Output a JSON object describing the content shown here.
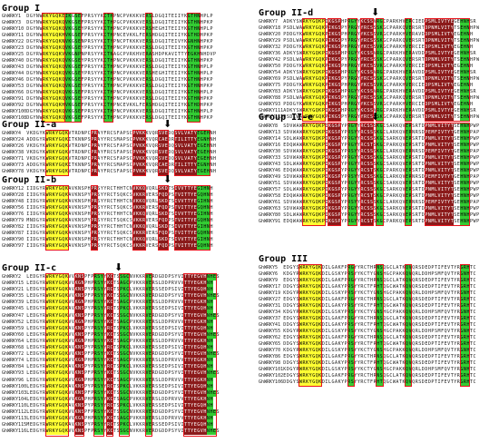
{
  "colors": {
    "yellow": "#ffff33",
    "green": "#33cc33",
    "dark_red": "#8b1a1a",
    "box": "#e8141c"
  },
  "icons": {
    "marker": "down-arrow-icon"
  },
  "groups": [
    {
      "title": "Group I",
      "seqs": [
        {
          "id": "GhWRKY1",
          "seq": "DGYNWRKYGQKEIKGSEFPRSYYKCTHPNCPVKKKVERSLDGQITEIIYKGTHNHPLP"
        },
        {
          "id": "GhWRKY3",
          "seq": "DGYNWRKYGQKQVKGSEFPRSYYKCTHPGCPVKKKVERSLDGQITEIIYKGTHNHPKP"
        },
        {
          "id": "GhWRKY10",
          "seq": "DGYNWRKYGQKQVKGSEYPRSYYKCTHPNCPVKKKVERSHEGHITEIIYKGTHNHPLP"
        },
        {
          "id": "GhWRKY11",
          "seq": "DGYNWRKYGQKHVKGSEFPRSYYKCTHPNCEVKKLFERSHDGQITEIIYKGTHDHPKP"
        },
        {
          "id": "GhWRKY22",
          "seq": "DGYRWRKYGQKNVKGSENPRSYYKCTYPNCPTKKKVERSLDGQITEIVYKGNHNHPKP"
        },
        {
          "id": "GhWRKY23",
          "seq": "DGYNWRKYGQKQVKGSEYPRSYYKCTHPNCPVKKKVERSLDGQITEIIYKGTHNHPKP"
        },
        {
          "id": "GhWRKY25",
          "seq": "DGYRWRKYGQKVVKGNPNPRSYYKCTNAGCPVRKHVERASHDPKAVITTYEGKHNHDVP"
        },
        {
          "id": "GhWRKY40",
          "seq": "DGYNWRKYGQKQVKGSEYPRSYYKCTHPNCPVKKKVERSLDGQITEIIYKGTHNHPKP"
        },
        {
          "id": "GhWRKY43",
          "seq": "DGYNWRKYGQKQVKGSEFPRSYYKCTHPNCPVKKKVERSLDGQITEIIYKGTHNHPLP"
        },
        {
          "id": "GhWRKY44",
          "seq": "DGYNWRKYGQKQVKGSEYPRSYYKCTHPNCPVKKKVERSHEGHITEIIYKGTHNHPLP"
        },
        {
          "id": "GhWRKY46",
          "seq": "DGYNWRKYGQKQVKGSEFPRSYYKCTHPNCPVKKKVERSLDGQITEIIYKGTHNHPKP"
        },
        {
          "id": "GhWRKY53",
          "seq": "DGYNWRKYGQKQVKGSEYPRSYYKCTHPNCPVKKKVERSLDGQITEIIYKGTHNHPKP"
        },
        {
          "id": "GhWRKY66",
          "seq": "DGYNWRKYGQKQVKGSEFPRSYYKCTHPNCPVKKKVERSLDGQITEIIYKGTHNHPLP"
        },
        {
          "id": "GhWRKY91",
          "seq": "DGYNWRKYGQKQVKGSEYPRSYYKCTHPNCPVKKKVERSLDGQITEIIYKGTHNHPKP"
        },
        {
          "id": "GhWRKY92",
          "seq": "DGYNWRKYGQKHVKGSEFPRSYYKCTHPNCEVKKLFERSHDGQITEIIYKGTHDHPKP"
        },
        {
          "id": "GhWRKY100",
          "seq": "DGYNWRKYGQKQVKGSEFPRSYYKCTHPNCPVKKKVERSLDGQITEIIYKGTHNHPLP"
        },
        {
          "id": "GhWRKY108",
          "seq": "DGYNWRKYGQKQVKGSEFPRSYYKCTHPNCPVKKKVERSLDGQITEIIYKGTHNHPKP"
        }
      ]
    },
    {
      "title": "Group II-a",
      "seqs": [
        {
          "id": "GhWRKY4",
          "seq": "VKDGYKWRKYGQKVTRDNPCPRAYFRCSFAPSCPVKKKVQRSVEDQSVLVATYEGEHNH"
        },
        {
          "id": "GhWRKY24",
          "seq": "ADDGYRWRKYGQKITKNNPSPRAYYRCSMAPSCPVKKKVQRCAEDRTILITTYEGNHNH"
        },
        {
          "id": "GhWRKY26",
          "seq": "VKDGYKWRKYGQKVTRDNPCPRAYFRCSFAPSCPVKKKVQRSVEDQSVLVATYEGEHNH"
        },
        {
          "id": "GhWRKY38",
          "seq": "VKDGYKWRKYGQKVTRDNPCPRAYFRCSFAPSCPVKKKVQRSVEDQSVLVATYEGEHNH"
        },
        {
          "id": "GhWRKY71",
          "seq": "VKDGYKWRKYGQKVTRDNPCPRAYFRCSFAPSCPVKKKVQRSVEDQSVLVATYEGEHNH"
        },
        {
          "id": "GhWRKY73",
          "seq": "ADDGYRWRKYGQKITKNNPSPRAYYRCSMAPSCPVKKKVQRCAEDRTILITTYEGNHNH"
        },
        {
          "id": "GhWRKY78",
          "seq": "VKDGYKWRKYGQKVTRDNPCPRAYFRCSFAPSCPVKKKVQRSVEDQSVLVATYEGEHNH"
        }
      ]
    },
    {
      "title": "Group II-b",
      "seqs": [
        {
          "id": "GhWRKY12",
          "seq": "IIDGYRWRKYGQKAVKNSPHPRSYYRCTHHTCNVKKQVQRLSKDTSIVVTTYEGIHNH"
        },
        {
          "id": "GhWRKY28",
          "seq": "IIDGYRWRKYGQKAVKNSPYPRSYYRCTSQKCSVKKRVERSFQDPSTVITTYEGQHNH"
        },
        {
          "id": "GhWRKY48",
          "seq": "IIDGYRWRKYGQKAVKNSPHPRSYYRCTHHTCNVKKQVQRLSKDTSIVVTTYEGIHNH"
        },
        {
          "id": "GhWRKY56",
          "seq": "IIDGYRWRKYGQKAVKNSPYPRSYYRCTSQKCSVKKRVERSFQDPSTVITTYEGQHNH"
        },
        {
          "id": "GhWRKY76",
          "seq": "IIDGYRWRKYGQKAVKNSPHPRSYYRCTHHTCNVKKQVQRLSKDTSIVVTTYEGIHNH"
        },
        {
          "id": "GhWRKY79",
          "seq": "MNDGYRWRKYGQKAVKNSPYPRSYYRCTSQKCSVKKRVERSFQDPSTVITTYEGQHNH"
        },
        {
          "id": "GhWRKY82",
          "seq": "IIDGYRWRKYGQKAVKNSPHPRSYYRCTHHTCNVKKQVQRLSKDTSIVVTTYEGIHNH"
        },
        {
          "id": "GhWRKY87",
          "seq": "IIDGYRWRKYGQKAVKNSPYPRSYYRCTSQKCSVKKRVERSFQDPSTVITTYEGQHNH"
        },
        {
          "id": "GhWRKY90",
          "seq": "IIDGYRWRKYGQKAVKNSPHPRSYYRCTHHTCNVKKQVQRLSKDTSIVVTTYEGIHNH"
        },
        {
          "id": "GhWRKY97",
          "seq": "IIDGYRWRKYGQKAVKNSPYPRSYYRCTSQKCSVKKRVERSFQDPSTVITTYEGQHNH"
        }
      ]
    },
    {
      "title": "Group II-c",
      "seqs": [
        {
          "id": "GhWRKY2",
          "seq": "LEDGYRWRKYGQKVVKNSPFPRSYYKCTSSGCNVKKRVERDGDDPSYVITTYEGVHNHES"
        },
        {
          "id": "GhWRKY15",
          "seq": "LEDGYRWRKYGQKVVKGNPHPRSYYKCTSAGCPVKKRVERSLDDPRVVVTTYEGKHNH"
        },
        {
          "id": "GhWRKY21",
          "seq": "LEDGYRWRKYGQKAVKNSPYPRSYYRCTSPKCLVKKRVERSSEDPSIVITTYEGQHNH"
        },
        {
          "id": "GhWRKY35",
          "seq": "LEDGYRWRKYGQKVVKNSPFPRSYYKCTSSGCNVKKRVERDGDDPSYVITTYEGVHNHES"
        },
        {
          "id": "GhWRKY39",
          "seq": "LEDGYRWRKYGQKVVKGNPHPRSYYKCTSAGCPVKKRVERSLDDPRVVVTTYEGKHNH"
        },
        {
          "id": "GhWRKY45",
          "seq": "LEDGYRWRKYGQKAVKNSPYPRSYYRCTSPKCLVKKRVERSSEDPSIVITTYEGQHNH"
        },
        {
          "id": "GhWRKY47",
          "seq": "LEDGYRWRKYGQKVVKNSPFPRSYYKCTSSGCNVKKRVERDGDDPSYVITTYEGVHNHES"
        },
        {
          "id": "GhWRKY52",
          "seq": "LEDGYRWRKYGQKVVKGNPHPRSYYKCTSAGCPVKKRVERSLDDPRVVVTTYEGKHNH"
        },
        {
          "id": "GhWRKY59",
          "seq": "LEDGYRWRKYGQKAVKNSPYPRSYYRCTSPKCLVKKRVERSSEDPSIVITTYEGQHNH"
        },
        {
          "id": "GhWRKY60",
          "seq": "LEDGYRWRKYGQKVVKNSPFPRSYYKCTSSGCNVKKRVERDGDDPSYVITTYEGVHNHES"
        },
        {
          "id": "GhWRKY64",
          "seq": "LEDGYRWRKYGQKVVKGNPHPRSYYKCTSAGCPVKKRVERSLDDPRVVVTTYEGKHNH"
        },
        {
          "id": "GhWRKY68",
          "seq": "LEDGYRWRKYGQKAVKNSPYPRSYYRCTSPKCLVKKRVERSSEDPSIVITTYEGQHNH"
        },
        {
          "id": "GhWRKY72",
          "seq": "LEDGYRWRKYGQKVVKNSPFPRSYYKCTSSGCNVKKRVERDGDDPSYVITTYEGVHNHES"
        },
        {
          "id": "GhWRKY74",
          "seq": "LEDGYRWRKYGQKVVKGNPHPRSYYKCTSAGCPVKKRVERSLDDPRVVVTTYEGKHNH"
        },
        {
          "id": "GhWRKY84",
          "seq": "LEDGYRWRKYGQKAVKNSPYPRSYYRCTSPKCLVKKRVERSSEDPSIVITTYEGQHNH"
        },
        {
          "id": "GhWRKY93",
          "seq": "LEDGYRWRKYGQKVVKNSPFPRSYYKCTSSGCNVKKRVERDGDDPSYVITTYEGVHNHES"
        },
        {
          "id": "GhWRKY96",
          "seq": "LEDGYRWRKYGQKVVKGNPHPRSYYKCTSAGCPVKKRVERSLDDPRVVVTTYEGKHNH"
        },
        {
          "id": "GhWRKY100",
          "seq": "LEDGYRWRKYGQKAVKNSPYPRSYYRCTSPKCLVKKRVERSSEDPSIVITTYEGQHNH"
        },
        {
          "id": "GhWRKY103",
          "seq": "LEDGYRWRKYGQKVVKNSPFPRSYYKCTSSGCNVKKRVERDGDDPSYVITTYEGVHNHES"
        },
        {
          "id": "GhWRKY104",
          "seq": "LEDGYRWRKYGQKVVKGNPHPRSYYKCTSAGCPVKKRVERSLDDPRVVVTTYEGKHNH"
        },
        {
          "id": "GhWRKY110",
          "seq": "LEDGYRWRKYGQKAVKNSPYPRSYYRCTSPKCLVKKRVERSSEDPSIVITTYEGQHNH"
        },
        {
          "id": "GhWRKY112",
          "seq": "LEDGYRWRKYGQKVVKNSPFPRSYYKCTSSGCNVKKRVERDGDDPSYVITTYEGVHNHES"
        },
        {
          "id": "GhWRKY113",
          "seq": "LEDGYRWRKYGQKVVKGNPHPRSYYKCTSAGCPVKKRVERSLDDPRVVVTTYEGKHNH"
        },
        {
          "id": "GhWRKY115",
          "seq": "MEDGYRWRKYGQKAVKNSPYPRSYYRCTSPKCLVKKRVERSSEDPSIVITTYEGQHNH"
        },
        {
          "id": "GhWRKY116",
          "seq": "LEDGYRWRKYGQKVVKNSPFPRSYYKCTSSGCNVKKRVERDGDDPSYVITTYEGVHNHES"
        }
      ]
    },
    {
      "title": "Group II-d",
      "seqs": [
        {
          "id": "GhWRKY7",
          "seq": "ADKYSWRKYGQKPIKGSPHPRGYYKCSSVRGCPARKHVERCIEDPSMLIVTYEGEHNHSR"
        },
        {
          "id": "GhWRKY18",
          "seq": "PSDLWAWRKYGQKPIKGSPYPRGYYRCSSSKGCPARKQVERSRTDPNMLVITYTSEHNHPW"
        },
        {
          "id": "GhWRKY20",
          "seq": "PDDGYKWRKYGQKPIKGSPHPRGYYKCSSVRGCPARKHVERAVDDPSMLIVTYEGEHNH"
        },
        {
          "id": "GhWRKY29",
          "seq": "PSDLWAWRKYGQKPIKGSPYPRGYYRCSSSKGCPARKQVERSRTDPNMLVITYTSEHNHPW"
        },
        {
          "id": "GhWRKY32",
          "seq": "PDDGYKWRKYGQKPIKGSPHPRGYYKCSSVRGCPARKHVERCIEDPSMLIVTYEGEHNH"
        },
        {
          "id": "GhWRKY36",
          "seq": "ADKYSWRKYGQKPIKGSPHPRGYYKCSSVRGCPARKHVERAVDDPSMLIVTYEGEHNHSR"
        },
        {
          "id": "GhWRKY42",
          "seq": "PSDLWAWRKYGQKPIKGSPYPRGYYRCSSSKGCPARKQVERSRTDPNMLVITYTSEHNHPW"
        },
        {
          "id": "GhWRKY50",
          "seq": "PDDGYKWRKYGQKPIKGSPHPRGYYKCSSVRGCPARKHVERCIEDPSMLIVTYEGEHNH"
        },
        {
          "id": "GhWRKY54",
          "seq": "ADKYSWRKYGQKPIKGSPHPRGYYKCSSVRGCPARKHVERAVDDPSMLIVTYEGEHNHSR"
        },
        {
          "id": "GhWRKY69",
          "seq": "PSDLWAWRKYGQKPIKGSPYPRGYYRCSSSKGCPARKQVERSRTDPNMLVITYTSEHNHPW"
        },
        {
          "id": "GhWRKY75",
          "seq": "PDDGYKWRKYGQKPIKGSPHPRGYYKCSSVRGCPARKHVERCIEDPSMLIVTYEGEHNH"
        },
        {
          "id": "GhWRKY83",
          "seq": "ADKYSWRKYGQKPIKGSPHPRGYYKCSSVRGCPARKHVERAVDDPSMLIVTYEGEHNHSR"
        },
        {
          "id": "GhWRKY88",
          "seq": "PSDLWAWRKYGQKPIKGSPYPRGYYRCSSSKGCPARKQVERSRTDPNMLVITYTSEHNHPW"
        },
        {
          "id": "GhWRKY93",
          "seq": "PDDGYKWRKYGQKPIKGSPHPRGYYKCSSVRGCPARKHVERCIEDPSMLIVTYEGEHNH"
        },
        {
          "id": "GhWRKY111",
          "seq": "ADKYSWRKYGQKPIKGSPHPRGYYKCSSVRGCPARKHVERAVDDPSMLIVTYEGEHNHSR"
        },
        {
          "id": "GhWRKY113",
          "seq": "PSDLWAWRKYGQKPIKGSPYPRGYYRCSSSKGCPARKQVERSRTDPNMLVITYTSEHNHPW"
        }
      ]
    },
    {
      "title": "Group II-e",
      "seqs": [
        {
          "id": "GhWRKY8",
          "seq": "SDVWAWRKYGQKPIKGSPYPRGYYRCSSSKGCSARKQVERSRTDPNMLVITYTSEHNHPWP"
        },
        {
          "id": "GhWRKY13",
          "seq": "SDVWAWRKYGQKPIKGSPYPRSYYRCSSSKGCLARKQVERNRSDPEMFIVTYTGEHNHPAP"
        },
        {
          "id": "GhWRKY14",
          "seq": "SDLWAWRKYGQKPIKGSPYPRGYYRCSSSKGCSARKQVERSRTDPNMLVITYTSEHNHPWP"
        },
        {
          "id": "GhWRKY16",
          "seq": "EDQWAWRKYGQKPIKGSPYPRGYYRCSTSKGCPARKQVERSRTDPNMLVITYTSEHNHPWP"
        },
        {
          "id": "GhWRKY30",
          "seq": "SDVWAWRKYGQKPIKGSPYPRSYYRCSSSKGCLARKQVERNRSDPEMFIVTYTGEHNHPAP"
        },
        {
          "id": "GhWRKY33",
          "seq": "SDVWAWRKYGQKPIKGSPYPRGYYRCSSSKGCSARKQVERSRTDPNMLVITYTSEHNHPWP"
        },
        {
          "id": "GhWRKY43",
          "seq": "SDLWAWRKYGQKPIKGSPYPRGYYRCSSSKGCSARKQVERSRTDPNMLVITYTSEHNHPWP"
        },
        {
          "id": "GhWRKY46",
          "seq": "EDQWAWRKYGQKPIKGSPYPRGYYRCSTSKGCPARKQVERSRTDPNMLVITYTSEHNHPWP"
        },
        {
          "id": "GhWRKY49",
          "seq": "SDVWAWRKYGQKPIKGSPYPRSYYRCSSSKGCLARKQVERNRSDPEMFIVTYTGEHNHPAP"
        },
        {
          "id": "GhWRKY51",
          "seq": "SDVWAWRKYGQKPIKGSPYPRGYYRCSSSKGCSARKQVERSRTDPNMLVITYTSEHNHPWP"
        },
        {
          "id": "GhWRKY57",
          "seq": "SDLWAWRKYGQKPIKGSPYPRGYYRCSSSKGCSARKQVERSRTDPNMLVITYTSEHNHPWP"
        },
        {
          "id": "GhWRKY58",
          "seq": "EDQWAWRKYGQKPIKGSPYPRGYYRCSTSKGCPARKQVERSRTDPNMLVITYTSEHNHPWP"
        },
        {
          "id": "GhWRKY61",
          "seq": "SDVWAWRKYGQKPIKGSPYPRSYYRCSSSKGCLARKQVERNRSDPEMFIVTYTGEHNHPAP"
        },
        {
          "id": "GhWRKY63",
          "seq": "SDVWAWRKYGQKPIKGSPYPRGYYRCSSSKGCSARKQVERSRTDPNMLVITYTSEHNHPWP"
        },
        {
          "id": "GhWRKY80",
          "seq": "SDLWAWRKYGQKPIKGSPYPRGYYRCSSSKGCSARKQVERSRTDPNMLVITYTSEHNHPWP"
        },
        {
          "id": "GhWRKY91",
          "seq": "EDQWAWRKYGQKPIKGSPYPRGYYRCSTSKGCPARKQVERSRTDPNMLVITYTSEHNHPWP"
        }
      ]
    },
    {
      "title": "Group III",
      "seqs": [
        {
          "id": "GhWRKY5",
          "seq": "EDGYSWRKYGQKDILGAKFPRGYYRCTHRNSQGCLATKQVQRSDEDPTIFEVTYRGRHTC"
        },
        {
          "id": "GhWRKY6",
          "seq": "KDGYRWRKYGQKDILGSKYPRSYYKCTYGNSHGCPAKKQVQRLDDHPSMFQVTYRGNHTC"
        },
        {
          "id": "GhWRKY9",
          "seq": "EDGYSWRKYGQKDILGAKFPRGYYRCTHRNSQGCLATKQVQRSDEDPTIFEVTYRGRHTC"
        },
        {
          "id": "GhWRKY17",
          "seq": "DDGYSWRKYGQKDILGAKYPRSYYRCTFRHTQGCWATKQVQRSDEDPTIFEVTYRGRHTC"
        },
        {
          "id": "GhWRKY19",
          "seq": "KDGYRWRKYGQKDILGSKYPRSYYKCTYGNSHGCPAKKQVQRLDDHPSMFQVTYRGNHTC"
        },
        {
          "id": "GhWRKY27",
          "seq": "EDGYSWRKYGQKDILGAKFPRGYYRCTHRNSQGCLATKQVQRSDEDPTIFEVTYRGRHTC"
        },
        {
          "id": "GhWRKY31",
          "seq": "DDGYSWRKYGQKDILGAKYPRSYYRCTFRHTQGCWATKQVQRSDEDPTIFEVTYRGRHTC"
        },
        {
          "id": "GhWRKY34",
          "seq": "KDGYRWRKYGQKDILGSKYPRSYYKCTYGNSHGCPAKKQVQRLDDHPSMFQVTYRGNHTC"
        },
        {
          "id": "GhWRKY37",
          "seq": "EDGYSWRKYGQKDILGAKFPRGYYRCTHRNSQGCLATKQVQRSDEDPTIFEVTYRGRHTC"
        },
        {
          "id": "GhWRKY41",
          "seq": "DDGYSWRKYGQKDILGAKYPRSYYRCTFRHTQGCWATKQVQRSDEDPTIFEVTYRGRHTC"
        },
        {
          "id": "GhWRKY55",
          "seq": "KDGYRWRKYGQKDILGSKYPRSYYKCTYGNSHGCPAKKQVQRLDDHPSMFQVTYRGNHTC"
        },
        {
          "id": "GhWRKY62",
          "seq": "EDGYSWRKYGQKDILGAKFPRGYYRCTHRNSQGCLATKQVQRSDEDPTIFEVTYRGRHTC"
        },
        {
          "id": "GhWRKY65",
          "seq": "DDGYSWRKYGQKDILGAKYPRSYYRCTFRHTQGCWATKQVQRSDEDPTIFEVTYRGRHTC"
        },
        {
          "id": "GhWRKY70",
          "seq": "KDGYRWRKYGQKDILGSKYPRSYYKCTYGNSHGCPAKKQVQRLDDHPSMFQVTYRGNHTC"
        },
        {
          "id": "GhWRKY86",
          "seq": "EDGYSWRKYGQKDILGAKFPRGYYRCTHRNSQGCLATKQVQRSDEDPTIFEVTYRGRHTC"
        },
        {
          "id": "GhWRKY98",
          "seq": "DDGYSWRKYGQKDILGAKYPRSYYRCTFRHTQGCWATKQVQRSDEDPTIFEVTYRGRHTC"
        },
        {
          "id": "GhWRKY101",
          "seq": "KDGYRWRKYGQKDILGSKYPRSYYKCTYGNSHGCPAKKQVQRLDDHPSMFQVTYRGNHTC"
        },
        {
          "id": "GhWRKY102",
          "seq": "EDGYSWRKYGQKDILGAKFPRGYYRCTHRNSQGCLATKQVQRSDEDPTIFEVTYRGRHTC"
        },
        {
          "id": "GhWRKY106",
          "seq": "DDGYSWRKYGQKDILGAKYPRSYYRCTFRHTQGCWATKQVQRSDEDPTIFEVTYRGRHTC"
        }
      ]
    }
  ]
}
